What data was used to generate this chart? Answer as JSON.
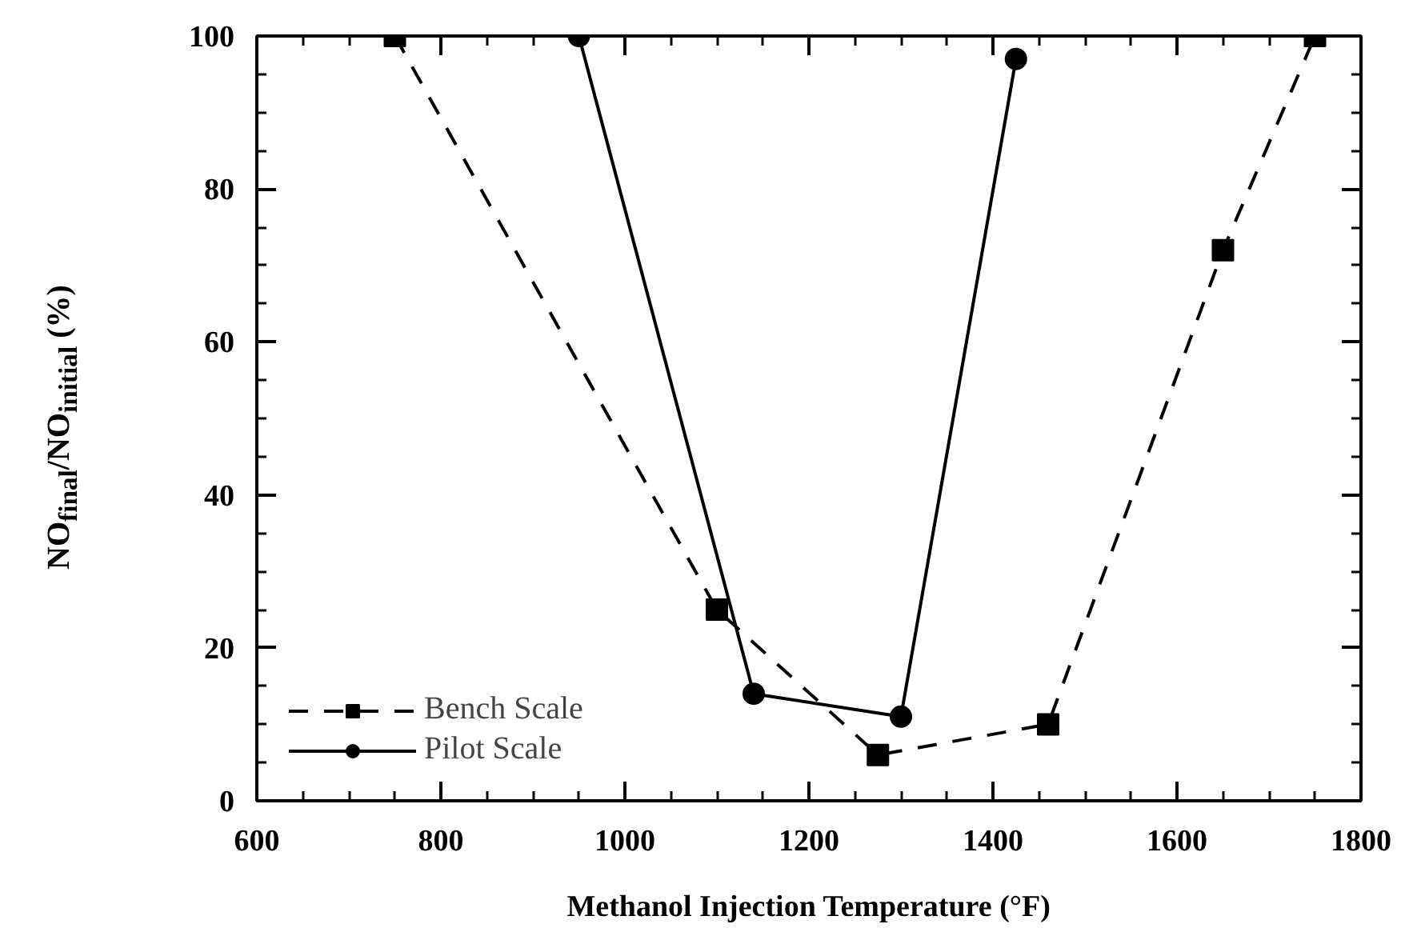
{
  "chart_data": {
    "type": "line",
    "xlabel": "Methanol Injection Temperature (°F)",
    "ylabel": "NO$_{final}$/NO$_{initial}$ (%)",
    "series": [
      {
        "name": "Bench Scale",
        "color": "#000000",
        "marker": "square",
        "line_style": "dashed",
        "x": [
          750,
          1100,
          1275,
          1460,
          1650,
          1750
        ],
        "values": [
          100,
          25,
          6,
          10,
          72,
          100
        ]
      },
      {
        "name": "Pilot Scale",
        "color": "#000000",
        "marker": "circle",
        "line_style": "solid",
        "x": [
          950,
          1140,
          1300,
          1425
        ],
        "values": [
          100,
          14,
          11,
          97
        ]
      }
    ],
    "xlim": [
      600,
      1800
    ],
    "xticks": [
      600,
      800,
      1000,
      1200,
      1400,
      1600,
      1800
    ],
    "ylim": [
      0,
      100
    ],
    "yticks": [
      0,
      20,
      40,
      60,
      80,
      100
    ],
    "grid": false,
    "legend": "bottom left"
  }
}
